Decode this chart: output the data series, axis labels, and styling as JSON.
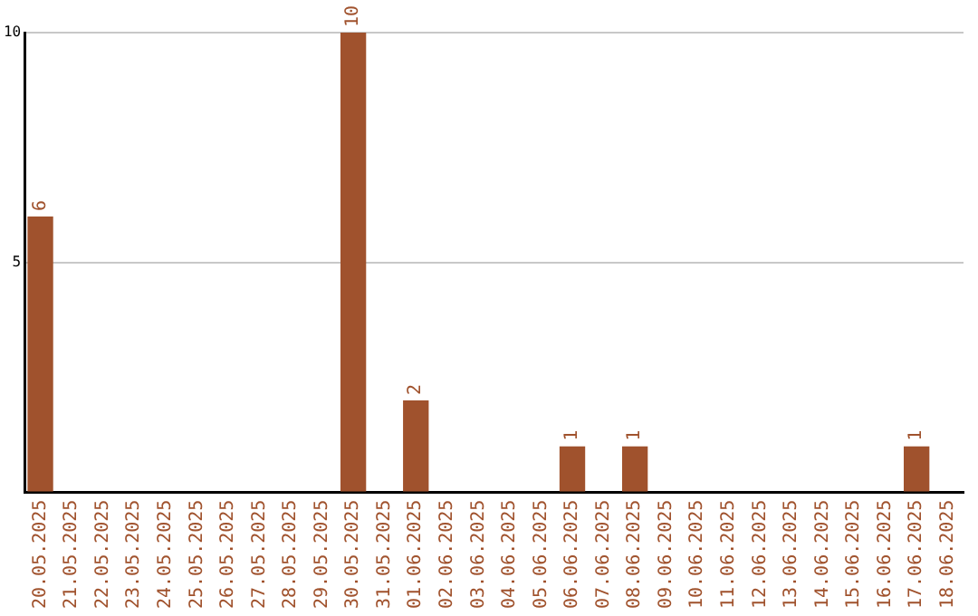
{
  "chart_data": {
    "type": "bar",
    "categories": [
      "20.05.2025",
      "21.05.2025",
      "22.05.2025",
      "23.05.2025",
      "24.05.2025",
      "25.05.2025",
      "26.05.2025",
      "27.05.2025",
      "28.05.2025",
      "29.05.2025",
      "30.05.2025",
      "31.05.2025",
      "01.06.2025",
      "02.06.2025",
      "03.06.2025",
      "04.06.2025",
      "05.06.2025",
      "06.06.2025",
      "07.06.2025",
      "08.06.2025",
      "09.06.2025",
      "10.06.2025",
      "11.06.2025",
      "12.06.2025",
      "13.06.2025",
      "14.06.2025",
      "15.06.2025",
      "16.06.2025",
      "17.06.2025",
      "18.06.2025"
    ],
    "values": [
      6,
      0,
      0,
      0,
      0,
      0,
      0,
      0,
      0,
      0,
      10,
      0,
      2,
      0,
      0,
      0,
      0,
      1,
      0,
      1,
      0,
      0,
      0,
      0,
      0,
      0,
      0,
      0,
      1,
      0
    ],
    "value_labels": [
      "6",
      null,
      null,
      null,
      null,
      null,
      null,
      null,
      null,
      null,
      "10",
      null,
      "2",
      null,
      null,
      null,
      null,
      "1",
      null,
      "1",
      null,
      null,
      null,
      null,
      null,
      null,
      null,
      null,
      "1",
      null
    ],
    "color": "#a0522d",
    "ylim": [
      0,
      10
    ],
    "yticks": [
      {
        "value": 0,
        "label": null
      },
      5,
      10
    ],
    "grid": "y"
  }
}
